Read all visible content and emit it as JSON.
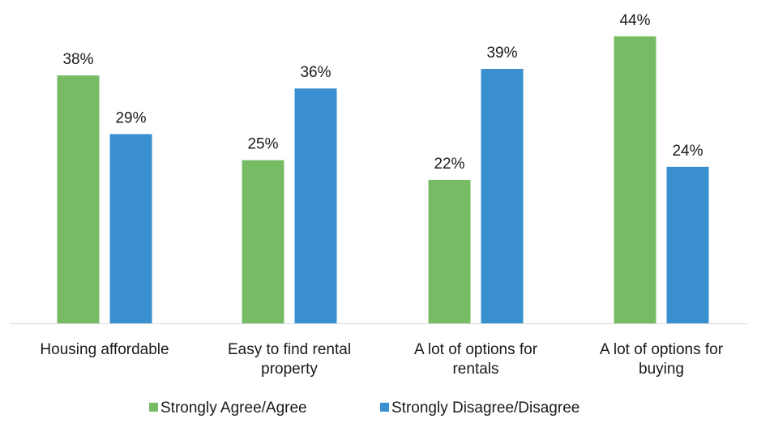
{
  "chart_data": {
    "type": "bar",
    "title": "",
    "xlabel": "",
    "ylabel": "",
    "categories": [
      [
        "Housing affordable"
      ],
      [
        "Easy to find rental",
        "property"
      ],
      [
        "A lot of options for",
        "rentals"
      ],
      [
        "A lot of options for",
        "buying"
      ]
    ],
    "series": [
      {
        "name": "Strongly Agree/Agree",
        "color": "#77bc65",
        "values": [
          38,
          25,
          22,
          44
        ],
        "labels": [
          "38%",
          "25%",
          "22%",
          "44%"
        ]
      },
      {
        "name": "Strongly Disagree/Disagree",
        "color": "#3a8fd0",
        "values": [
          29,
          36,
          39,
          24
        ],
        "labels": [
          "29%",
          "36%",
          "39%",
          "24%"
        ]
      }
    ],
    "ylim": [
      0,
      45
    ],
    "grid": false,
    "legend": "bottom"
  }
}
